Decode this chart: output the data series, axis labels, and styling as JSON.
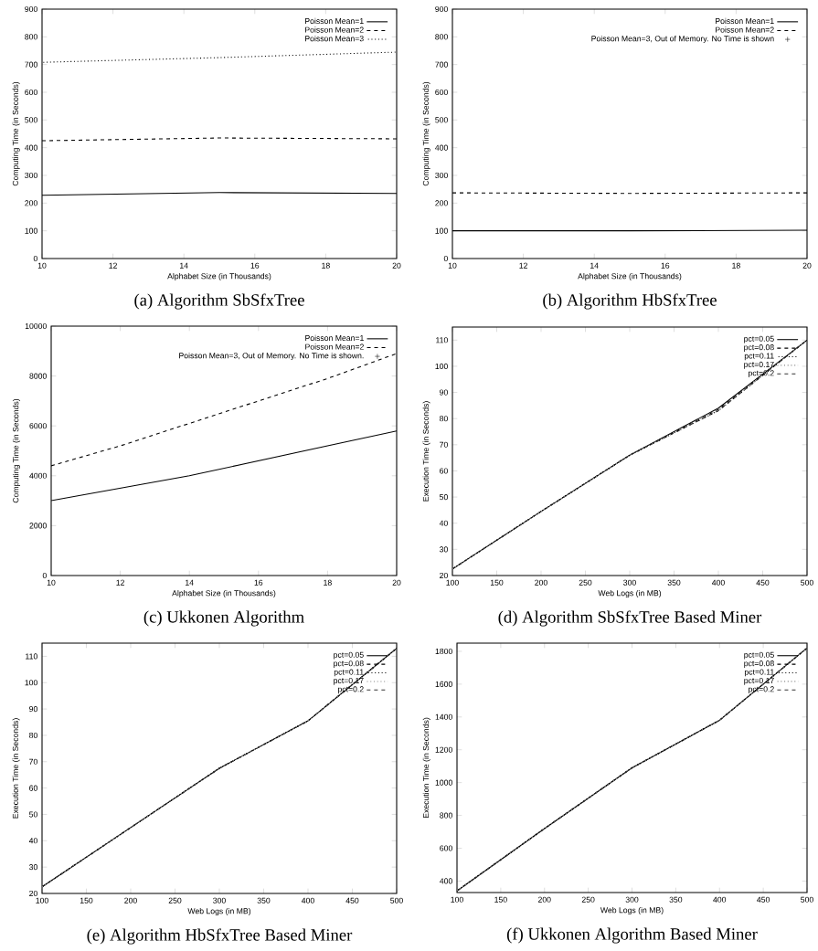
{
  "chart_data": [
    {
      "type": "line",
      "title": "(a) Algorithm SbSfxTree",
      "xlabel": "Alphabet Size (in Thousands)",
      "ylabel": "Computing Time (in Seconds)",
      "x": [
        10,
        15,
        20
      ],
      "xlim": [
        10,
        20
      ],
      "ylim": [
        0,
        900
      ],
      "xticks": [
        10,
        12,
        14,
        16,
        18,
        20
      ],
      "yticks": [
        0,
        100,
        200,
        300,
        400,
        500,
        600,
        700,
        800,
        900
      ],
      "legend": "top right",
      "series": [
        {
          "name": "Poisson Mean=1",
          "color": "#000000",
          "line_style": "solid",
          "values": [
            228,
            238,
            235
          ]
        },
        {
          "name": "Poisson Mean=2",
          "color": "#000000",
          "line_style": "dashed",
          "values": [
            425,
            435,
            432
          ]
        },
        {
          "name": "Poisson Mean=3",
          "color": "#000000",
          "line_style": "dotted",
          "values": [
            708,
            725,
            745
          ]
        }
      ]
    },
    {
      "type": "line",
      "title": "(b) Algorithm HbSfxTree",
      "xlabel": "Alphabet Size (in Thousands)",
      "ylabel": "Computing Time (in Seconds)",
      "x": [
        10,
        15,
        20
      ],
      "xlim": [
        10,
        20
      ],
      "ylim": [
        0,
        900
      ],
      "xticks": [
        10,
        12,
        14,
        16,
        18,
        20
      ],
      "yticks": [
        0,
        100,
        200,
        300,
        400,
        500,
        600,
        700,
        800,
        900
      ],
      "legend": "top right",
      "series": [
        {
          "name": "Poisson Mean=1",
          "color": "#000000",
          "line_style": "solid",
          "values": [
            100,
            100,
            102
          ]
        },
        {
          "name": "Poisson Mean=2",
          "color": "#000000",
          "line_style": "dashed",
          "values": [
            237,
            235,
            237
          ]
        },
        {
          "name": "Poisson Mean=3, Out of Memory. No Time is shown",
          "type": "scatter",
          "marker": "cross",
          "color": "#000000",
          "values": [
            null,
            null,
            null
          ]
        }
      ]
    },
    {
      "type": "line",
      "title": "(c) Ukkonen Algorithm",
      "xlabel": "Alphabet Size (in Thousands)",
      "ylabel": "Computing Time (in Seconds)",
      "x": [
        10,
        12,
        14,
        16,
        18,
        20
      ],
      "xlim": [
        10,
        20
      ],
      "ylim": [
        0,
        10000
      ],
      "xticks": [
        10,
        12,
        14,
        16,
        18,
        20
      ],
      "yticks": [
        0,
        2000,
        4000,
        6000,
        8000,
        10000
      ],
      "legend": "top right",
      "series": [
        {
          "name": "Poisson Mean=1",
          "color": "#000000",
          "line_style": "solid",
          "values": [
            3000,
            3500,
            4000,
            4600,
            5200,
            5800
          ]
        },
        {
          "name": "Poisson Mean=2",
          "color": "#000000",
          "line_style": "dashed",
          "values": [
            4400,
            5200,
            6100,
            7000,
            7900,
            8900
          ]
        },
        {
          "name": "Poisson Mean=3, Out of Memory. No Time is shown.",
          "type": "scatter",
          "marker": "cross",
          "color": "#000000",
          "values": [
            null,
            null,
            null,
            null,
            null,
            null
          ]
        }
      ]
    },
    {
      "type": "line",
      "title": "(d) Algorithm SbSfxTree Based Miner",
      "xlabel": "Web Logs (in MB)",
      "ylabel": "Execution Time (in Seconds)",
      "x": [
        100,
        200,
        300,
        400,
        500
      ],
      "xlim": [
        100,
        500
      ],
      "ylim": [
        20,
        115
      ],
      "xticks": [
        100,
        150,
        200,
        250,
        300,
        350,
        400,
        450,
        500
      ],
      "yticks": [
        20,
        30,
        40,
        50,
        60,
        70,
        80,
        90,
        100,
        110
      ],
      "legend": "top right",
      "series": [
        {
          "name": "pct=0.05",
          "color": "#000000",
          "line_style": "solid",
          "values": [
            22.5,
            44.5,
            66,
            84,
            110
          ]
        },
        {
          "name": "pct=0.08",
          "color": "#000000",
          "line_style": "dashed",
          "values": [
            22.5,
            44.5,
            66,
            83.5,
            110
          ]
        },
        {
          "name": "pct=0.11",
          "color": "#000000",
          "line_style": "dotted",
          "values": [
            22.5,
            44.5,
            66,
            83,
            110
          ]
        },
        {
          "name": "pct=0.17",
          "color": "#888888",
          "line_style": "dotted",
          "values": [
            22.5,
            44.5,
            66,
            83.5,
            110
          ]
        },
        {
          "name": "pct=0.2",
          "color": "#333333",
          "line_style": "dashed",
          "values": [
            22.5,
            44.5,
            66,
            83,
            110
          ]
        }
      ]
    },
    {
      "type": "line",
      "title": "(e) Algorithm HbSfxTree Based Miner",
      "xlabel": "Web Logs (in MB)",
      "ylabel": "Execution Time (in Seconds)",
      "x": [
        100,
        200,
        300,
        400,
        500
      ],
      "xlim": [
        100,
        500
      ],
      "ylim": [
        20,
        115
      ],
      "xticks": [
        100,
        150,
        200,
        250,
        300,
        350,
        400,
        450,
        500
      ],
      "yticks": [
        20,
        30,
        40,
        50,
        60,
        70,
        80,
        90,
        100,
        110
      ],
      "legend": "top right",
      "series": [
        {
          "name": "pct=0.05",
          "color": "#000000",
          "line_style": "solid",
          "values": [
            22.5,
            45,
            67.5,
            85.5,
            113
          ]
        },
        {
          "name": "pct=0.08",
          "color": "#000000",
          "line_style": "dashed",
          "values": [
            22.5,
            45,
            67.5,
            85.5,
            113
          ]
        },
        {
          "name": "pct=0.11",
          "color": "#000000",
          "line_style": "dotted",
          "values": [
            22.5,
            45,
            67.5,
            85.5,
            113
          ]
        },
        {
          "name": "pct=0.17",
          "color": "#888888",
          "line_style": "dotted",
          "values": [
            22.5,
            45,
            67.5,
            85.5,
            113
          ]
        },
        {
          "name": "pct=0.2",
          "color": "#333333",
          "line_style": "dashed",
          "values": [
            22.5,
            45,
            67.5,
            85.5,
            113
          ]
        }
      ]
    },
    {
      "type": "line",
      "title": "(f) Ukkonen Algorithm Based Miner",
      "xlabel": "Web Logs (in MB)",
      "ylabel": "Execution Time (in Seconds)",
      "x": [
        100,
        200,
        300,
        400,
        500
      ],
      "xlim": [
        100,
        500
      ],
      "ylim": [
        330,
        1850
      ],
      "xticks": [
        100,
        150,
        200,
        250,
        300,
        350,
        400,
        450,
        500
      ],
      "yticks": [
        400,
        600,
        800,
        1000,
        1200,
        1400,
        1600,
        1800
      ],
      "legend": "top right",
      "series": [
        {
          "name": "pct=0.05",
          "color": "#000000",
          "line_style": "solid",
          "values": [
            340,
            720,
            1090,
            1380,
            1820
          ]
        },
        {
          "name": "pct=0.08",
          "color": "#000000",
          "line_style": "dashed",
          "values": [
            340,
            720,
            1090,
            1380,
            1820
          ]
        },
        {
          "name": "pct=0.11",
          "color": "#000000",
          "line_style": "dotted",
          "values": [
            340,
            720,
            1090,
            1380,
            1820
          ]
        },
        {
          "name": "pct=0.17",
          "color": "#888888",
          "line_style": "dotted",
          "values": [
            340,
            720,
            1090,
            1380,
            1820
          ]
        },
        {
          "name": "pct=0.2",
          "color": "#333333",
          "line_style": "dashed",
          "values": [
            340,
            720,
            1090,
            1380,
            1820
          ]
        }
      ]
    }
  ]
}
